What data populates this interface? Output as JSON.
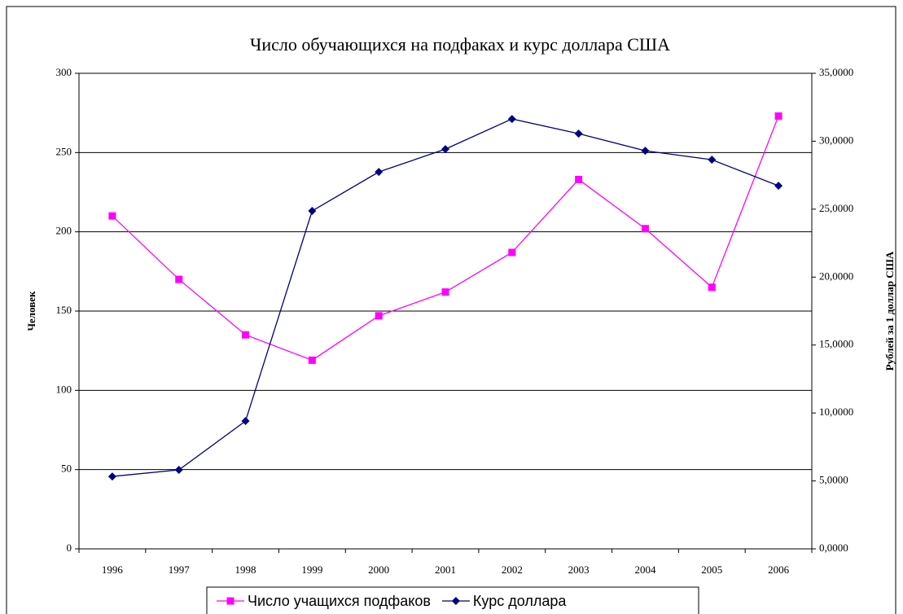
{
  "chart_data": {
    "type": "line",
    "title": "Число обучающихся на подфаках и курс доллара США",
    "y_label": "Человек",
    "y2_label": "Рублей за 1 доллар США",
    "categories": [
      "1996",
      "1997",
      "1998",
      "1999",
      "2000",
      "2001",
      "2002",
      "2003",
      "2004",
      "2005",
      "2006"
    ],
    "series": [
      {
        "name": "Число учащихся подфаков",
        "color": "#ff00ff",
        "marker": "square",
        "values": [
          210,
          170,
          135,
          119,
          147,
          162,
          187,
          233,
          202,
          165,
          273
        ]
      },
      {
        "name": "Курс доллара",
        "color": "#000080",
        "marker": "diamond",
        "axis": "y2",
        "values": [
          5.33,
          5.81,
          9.41,
          24.87,
          27.74,
          29.42,
          31.64,
          30.56,
          29.3,
          28.64,
          26.72
        ]
      }
    ],
    "ylim": [
      0,
      300
    ],
    "yticks": [
      0,
      50,
      100,
      150,
      200,
      250,
      300
    ],
    "y2lim": [
      0,
      35
    ],
    "y2ticks": [
      {
        "value": 0,
        "label": "0,0000"
      },
      {
        "value": 5,
        "label": "5,0000"
      },
      {
        "value": 10,
        "label": "10,0000"
      },
      {
        "value": 15,
        "label": "15,0000"
      },
      {
        "value": 20,
        "label": "20,0000"
      },
      {
        "value": 25,
        "label": "25,0000"
      },
      {
        "value": 30,
        "label": "30,0000"
      },
      {
        "value": 35,
        "label": "35,0000"
      }
    ],
    "grid": true,
    "legend": "bottom"
  }
}
